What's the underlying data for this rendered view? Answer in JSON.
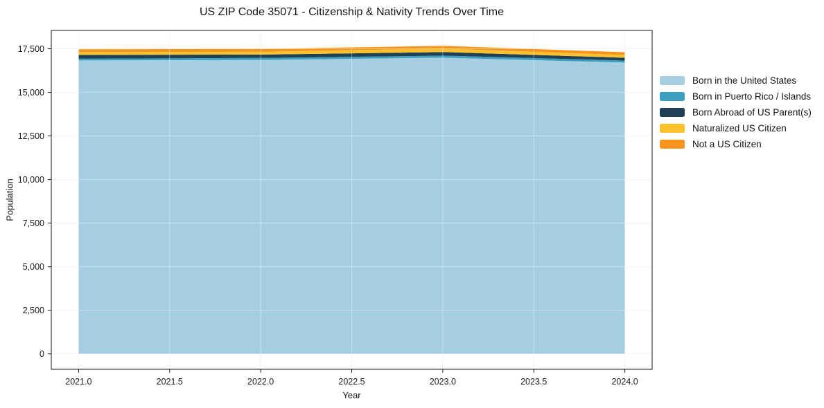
{
  "figure": {
    "title": "US ZIP Code 35071 - Citizenship & Nativity Trends Over Time"
  },
  "chart_data": {
    "type": "area",
    "stacked": true,
    "title": "US ZIP Code 35071 - Citizenship & Nativity Trends Over Time",
    "xlabel": "Year",
    "ylabel": "Population",
    "x": [
      2021,
      2022,
      2023,
      2024
    ],
    "series": [
      {
        "name": "Born in the United States",
        "color": "#a5cee2",
        "values": [
          16830,
          16860,
          16990,
          16710
        ]
      },
      {
        "name": "Born in Puerto Rico / Islands",
        "color": "#3ba0c0",
        "values": [
          100,
          115,
          120,
          115
        ]
      },
      {
        "name": "Born Abroad of US Parent(s)",
        "color": "#204055",
        "values": [
          220,
          195,
          200,
          160
        ]
      },
      {
        "name": "Naturalized US Citizen",
        "color": "#fcc22d",
        "values": [
          160,
          160,
          200,
          160
        ]
      },
      {
        "name": "Not a US Citizen",
        "color": "#f7941e",
        "values": [
          160,
          160,
          160,
          160
        ]
      }
    ],
    "totals": [
      17470,
      17490,
      17670,
      17305
    ],
    "xticks": [
      2021.0,
      2021.5,
      2022.0,
      2022.5,
      2023.0,
      2023.5,
      2024.0
    ],
    "xtick_labels": [
      "2021.0",
      "2021.5",
      "2022.0",
      "2022.5",
      "2023.0",
      "2023.5",
      "2024.0"
    ],
    "yticks": [
      0,
      2500,
      5000,
      7500,
      10000,
      12500,
      15000,
      17500
    ],
    "ytick_labels": [
      "0",
      "2,500",
      "5,000",
      "7,500",
      "10,000",
      "12,500",
      "15,000",
      "17,500"
    ],
    "xlim": [
      2020.85,
      2024.15
    ],
    "ylim": [
      -883,
      18553
    ],
    "grid": true,
    "legend_position": "right-outside",
    "axis_colors": {
      "spine": "#1a1a1a",
      "tick_label": "#1a1a1a",
      "grid_under": "#ececec",
      "grid_over": "rgba(255,255,255,0.4)",
      "plot_background": "#ffffff"
    }
  }
}
